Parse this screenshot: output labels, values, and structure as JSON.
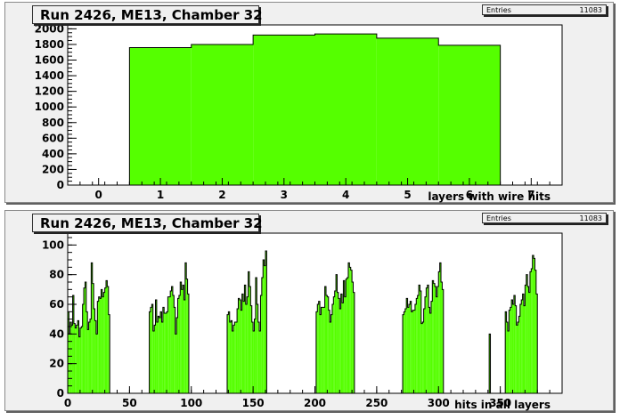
{
  "chart_data": [
    {
      "type": "histogram",
      "title": "Run 2426, ME13, Chamber 32",
      "xlabel": "layers with wire hits",
      "ylabel": "",
      "stats": {
        "label": "Entries",
        "value": "11083"
      },
      "xlim": [
        -0.5,
        7.5
      ],
      "ylim": [
        0,
        2050
      ],
      "x_ticks": [
        0,
        1,
        2,
        3,
        4,
        5,
        6,
        7
      ],
      "y_ticks": [
        0,
        200,
        400,
        600,
        800,
        1000,
        1200,
        1400,
        1600,
        1800,
        2000
      ],
      "bin_edges": [
        0.5,
        1.5,
        2.5,
        3.5,
        4.5,
        5.5,
        6.5
      ],
      "values": [
        1760,
        1800,
        1920,
        1935,
        1880,
        1790
      ],
      "fill_color": "#55ff00",
      "grid": false
    },
    {
      "type": "histogram",
      "title": "Run 2426, ME13, Chamber 32",
      "xlabel": "hits in all layers",
      "ylabel": "",
      "stats": {
        "label": "Entries",
        "value": "11083"
      },
      "xlim": [
        0,
        400
      ],
      "ylim": [
        0,
        108
      ],
      "x_ticks": [
        0,
        50,
        100,
        150,
        200,
        250,
        300,
        350
      ],
      "y_ticks": [
        0,
        20,
        40,
        60,
        80,
        100
      ],
      "bin_width": 1,
      "bin_start": 0,
      "values": [
        55,
        40,
        48,
        46,
        66,
        47,
        44,
        46,
        49,
        38,
        44,
        45,
        60,
        71,
        75,
        55,
        43,
        48,
        50,
        88,
        74,
        57,
        49,
        40,
        62,
        65,
        64,
        70,
        65,
        68,
        71,
        76,
        72,
        53,
        0,
        0,
        0,
        0,
        0,
        0,
        0,
        0,
        0,
        0,
        0,
        0,
        0,
        0,
        0,
        0,
        0,
        0,
        0,
        0,
        0,
        0,
        0,
        0,
        0,
        0,
        0,
        0,
        0,
        0,
        0,
        0,
        55,
        58,
        60,
        42,
        46,
        63,
        48,
        52,
        51,
        55,
        48,
        58,
        54,
        54,
        55,
        65,
        65,
        69,
        72,
        66,
        58,
        40,
        51,
        64,
        66,
        75,
        70,
        73,
        63,
        88,
        77,
        67,
        0,
        0,
        0,
        0,
        0,
        0,
        0,
        0,
        0,
        0,
        0,
        0,
        0,
        0,
        0,
        0,
        0,
        0,
        0,
        0,
        0,
        0,
        0,
        0,
        0,
        0,
        0,
        0,
        0,
        0,
        0,
        53,
        55,
        48,
        49,
        42,
        46,
        48,
        48,
        57,
        64,
        63,
        56,
        67,
        62,
        73,
        60,
        65,
        82,
        72,
        59,
        48,
        42,
        50,
        78,
        60,
        48,
        42,
        66,
        78,
        90,
        86,
        96,
        0,
        0,
        0,
        0,
        0,
        0,
        0,
        0,
        0,
        0,
        0,
        0,
        0,
        0,
        0,
        0,
        0,
        0,
        0,
        0,
        0,
        0,
        0,
        0,
        0,
        0,
        0,
        0,
        0,
        0,
        0,
        0,
        0,
        0,
        0,
        0,
        0,
        0,
        0,
        0,
        55,
        60,
        62,
        53,
        58,
        58,
        58,
        72,
        66,
        65,
        56,
        48,
        53,
        60,
        65,
        69,
        80,
        68,
        64,
        57,
        67,
        61,
        76,
        65,
        77,
        78,
        88,
        85,
        83,
        75,
        68,
        0,
        0,
        0,
        0,
        0,
        0,
        0,
        0,
        0,
        0,
        0,
        0,
        0,
        0,
        0,
        0,
        0,
        0,
        0,
        0,
        0,
        0,
        0,
        0,
        0,
        0,
        0,
        0,
        0,
        0,
        0,
        0,
        0,
        0,
        0,
        0,
        0,
        0,
        0,
        53,
        55,
        57,
        64,
        58,
        60,
        62,
        55,
        56,
        56,
        60,
        64,
        66,
        73,
        69,
        47,
        48,
        57,
        65,
        71,
        73,
        58,
        54,
        62,
        76,
        74,
        72,
        65,
        72,
        82,
        88,
        75,
        70,
        0,
        0,
        0,
        0,
        0,
        0,
        0,
        0,
        0,
        0,
        0,
        0,
        0,
        0,
        0,
        0,
        0,
        0,
        0,
        0,
        0,
        0,
        0,
        0,
        0,
        0,
        0,
        0,
        0,
        0,
        0,
        0,
        0,
        0,
        0,
        0,
        0,
        40,
        0,
        0,
        0,
        0,
        0,
        0,
        0,
        0,
        0,
        0,
        0,
        0,
        55,
        48,
        42,
        56,
        58,
        63,
        60,
        66,
        59,
        46,
        48,
        52,
        60,
        63,
        67,
        59,
        73,
        80,
        72,
        68,
        82,
        84,
        93,
        91,
        83,
        67,
        0,
        0,
        0,
        0,
        0,
        0,
        0,
        0,
        0,
        0,
        0,
        0,
        0,
        0,
        0,
        0,
        0,
        0,
        0,
        0,
        0,
        0,
        0,
        0,
        0,
        0,
        0,
        0,
        0,
        0,
        0,
        0,
        0,
        0,
        0,
        0,
        0,
        0,
        0,
        0,
        0,
        0,
        0,
        0,
        0,
        0,
        0,
        0,
        0,
        0,
        0,
        0,
        0,
        0,
        0,
        0,
        0,
        0,
        0,
        0,
        0,
        0,
        0,
        0,
        0,
        0,
        0,
        0,
        0,
        0,
        0,
        0,
        0,
        0
      ],
      "fill_color": "#55ff00",
      "grid": false
    }
  ]
}
